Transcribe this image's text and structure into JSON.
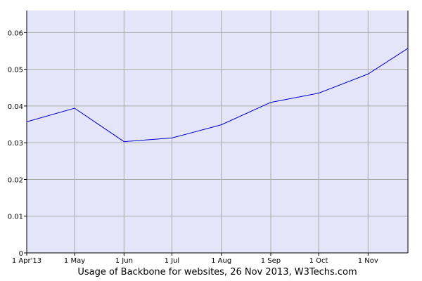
{
  "chart_data": {
    "type": "line",
    "title": "Usage of Backbone for websites, 26 Nov 2013, W3Techs.com",
    "x": [
      "2013-04-01",
      "2013-05-01",
      "2013-06-01",
      "2013-07-01",
      "2013-08-01",
      "2013-09-01",
      "2013-10-01",
      "2013-11-01",
      "2013-11-26"
    ],
    "x_tick_labels": [
      "1 Apr'13",
      "1 May",
      "1 Jun",
      "1 Jul",
      "1 Aug",
      "1 Sep",
      "1 Oct",
      "1 Nov"
    ],
    "y_tick_labels": [
      "0",
      "0.01",
      "0.02",
      "0.03",
      "0.04",
      "0.05",
      "0.06"
    ],
    "series": [
      {
        "values": [
          0.0357,
          0.0394,
          0.0303,
          0.0313,
          0.0349,
          0.041,
          0.0435,
          0.0487,
          0.0557
        ]
      }
    ],
    "ylim": [
      0,
      0.066
    ],
    "xlim": [
      "2013-04-01",
      "2013-11-26"
    ],
    "grid": true,
    "colors": {
      "plot_background": "#e5e5fa",
      "line": "#0000cc",
      "grid": "#aaaaaa",
      "axis": "#000000"
    }
  }
}
